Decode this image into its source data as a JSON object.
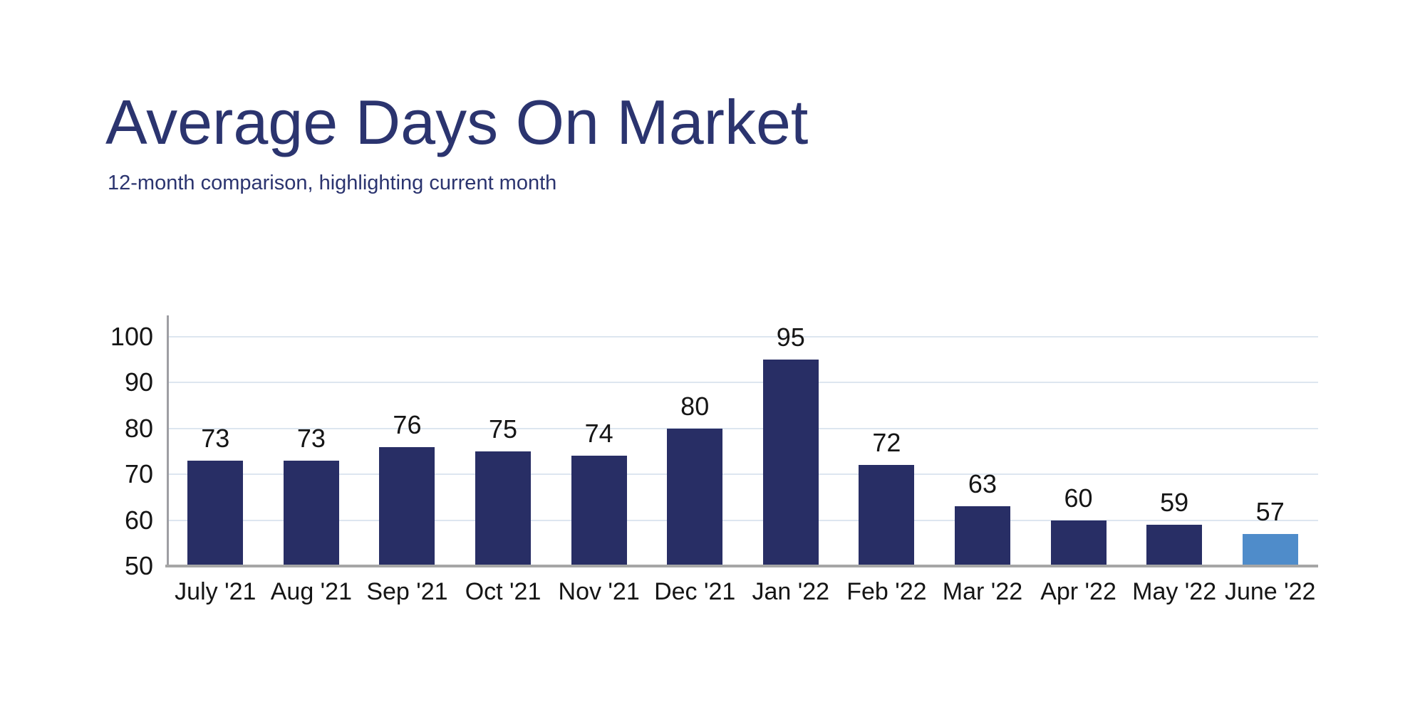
{
  "header": {
    "title": "Average Days On Market",
    "subtitle": "12-month comparison, highlighting current month"
  },
  "chart_data": {
    "type": "bar",
    "title": "Average Days On Market",
    "subtitle": "12-month comparison, highlighting current month",
    "categories": [
      "July '21",
      "Aug '21",
      "Sep '21",
      "Oct '21",
      "Nov '21",
      "Dec '21",
      "Jan '22",
      "Feb '22",
      "Mar '22",
      "Apr '22",
      "May '22",
      "June '22"
    ],
    "values": [
      73,
      73,
      76,
      75,
      74,
      80,
      95,
      72,
      63,
      60,
      59,
      57
    ],
    "highlighted_index": 11,
    "highlighted_category": "June '22",
    "y_ticks": [
      50,
      60,
      70,
      80,
      90,
      100
    ],
    "ylim": [
      50,
      105
    ],
    "grid": "horizontal",
    "legend": "none",
    "xlabel": "",
    "ylabel": "",
    "data_labels": "above bars",
    "colors": {
      "bar_default": "#282e65",
      "bar_highlight": "#4f8cca",
      "title_text": "#2b346f",
      "axis_text": "#151515",
      "gridline": "#dde6f0",
      "axis_line": "#a6a6a6"
    }
  }
}
